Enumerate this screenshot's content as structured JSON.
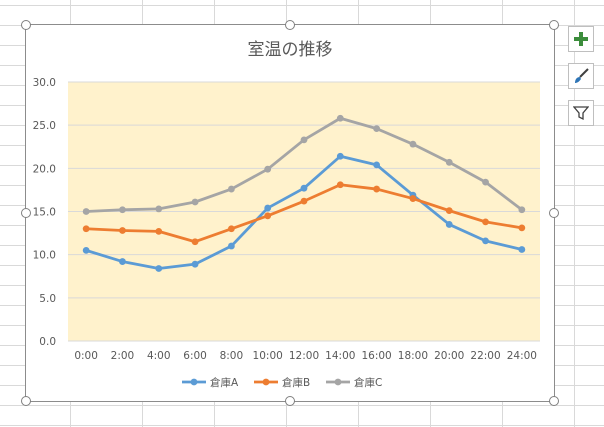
{
  "chart_data": {
    "type": "line",
    "title": "室温の推移",
    "xlabel": "",
    "ylabel": "",
    "categories": [
      "0:00",
      "2:00",
      "4:00",
      "6:00",
      "8:00",
      "10:00",
      "12:00",
      "14:00",
      "16:00",
      "18:00",
      "20:00",
      "22:00",
      "24:00"
    ],
    "ylim": [
      0,
      30
    ],
    "yticks": [
      "0.0",
      "5.0",
      "10.0",
      "15.0",
      "20.0",
      "25.0",
      "30.0"
    ],
    "series": [
      {
        "name": "倉庫A",
        "color": "#5b9bd5",
        "values": [
          10.5,
          9.2,
          8.4,
          8.9,
          11.0,
          15.4,
          17.7,
          21.4,
          20.4,
          16.9,
          13.5,
          11.6,
          10.6
        ]
      },
      {
        "name": "倉庫B",
        "color": "#ed7d31",
        "values": [
          13.0,
          12.8,
          12.7,
          11.5,
          13.0,
          14.5,
          16.2,
          18.1,
          17.6,
          16.5,
          15.1,
          13.8,
          13.1
        ]
      },
      {
        "name": "倉庫C",
        "color": "#a5a5a5",
        "values": [
          15.0,
          15.2,
          15.3,
          16.1,
          17.6,
          19.9,
          23.3,
          25.8,
          24.6,
          22.8,
          20.7,
          18.4,
          15.2
        ]
      }
    ],
    "grid": true,
    "legend": "bottom",
    "plot_background": "#fff2cc"
  },
  "toolbar": {
    "add_element": "plus-icon",
    "styles": "brush-icon",
    "filter": "filter-icon"
  }
}
